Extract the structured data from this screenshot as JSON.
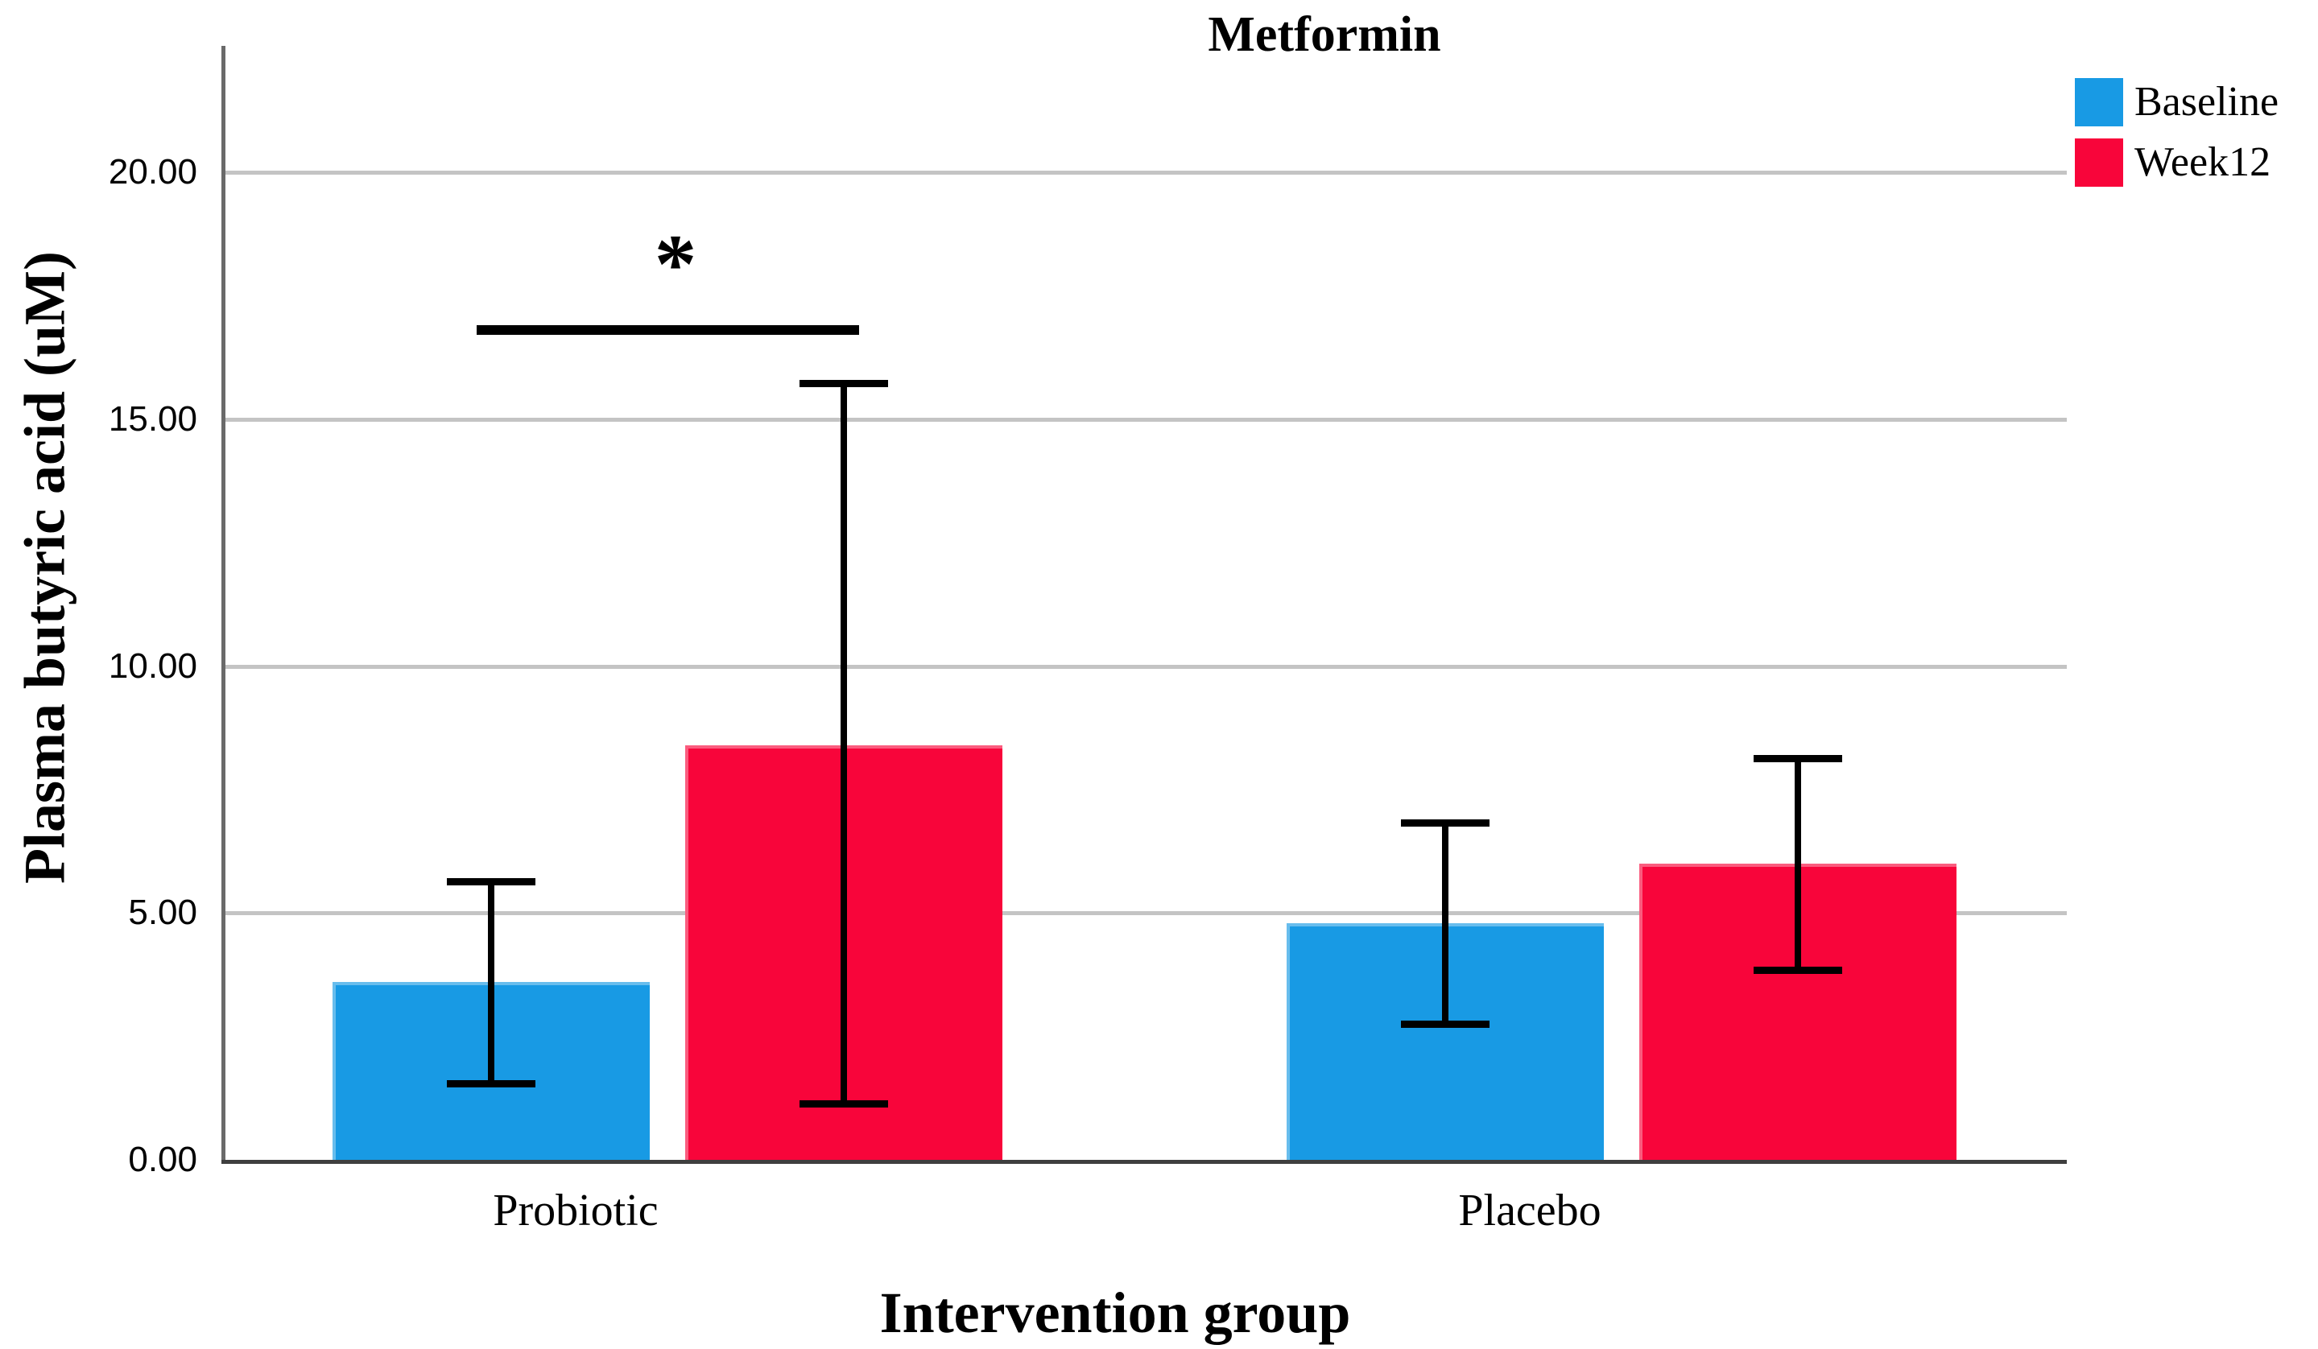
{
  "chart_data": {
    "type": "bar",
    "title": "Metformin",
    "xlabel": "Intervention group",
    "ylabel": "Plasma butyric acid (uM)",
    "categories": [
      "Probiotic",
      "Placebo"
    ],
    "series": [
      {
        "name": "Baseline",
        "color": "#189AE4",
        "values": [
          3.6,
          4.8
        ],
        "error_low": [
          1.5,
          2.7
        ],
        "error_high": [
          5.7,
          6.9
        ]
      },
      {
        "name": "Week12",
        "color": "#F8053A",
        "values": [
          8.4,
          6.0
        ],
        "error_low": [
          1.1,
          3.8
        ],
        "error_high": [
          15.8,
          8.2
        ]
      }
    ],
    "ylim": [
      0,
      22.5
    ],
    "yticks": [
      {
        "value": 0,
        "label": "0.00"
      },
      {
        "value": 5,
        "label": "5.00"
      },
      {
        "value": 10,
        "label": "10.00"
      },
      {
        "value": 15,
        "label": "15.00"
      },
      {
        "value": 20,
        "label": "20.00"
      }
    ],
    "grid": true,
    "legend_position": "top-right",
    "significance": {
      "label": "*",
      "category": "Probiotic",
      "from_series": "Baseline",
      "to_series": "Week12",
      "y_value": 16.8
    },
    "error_bar_color": "#000000",
    "gridline_color": "#c4c4c4",
    "y_axis_color": "#6a6a6a",
    "x_axis_color": "#3f3f3f"
  }
}
